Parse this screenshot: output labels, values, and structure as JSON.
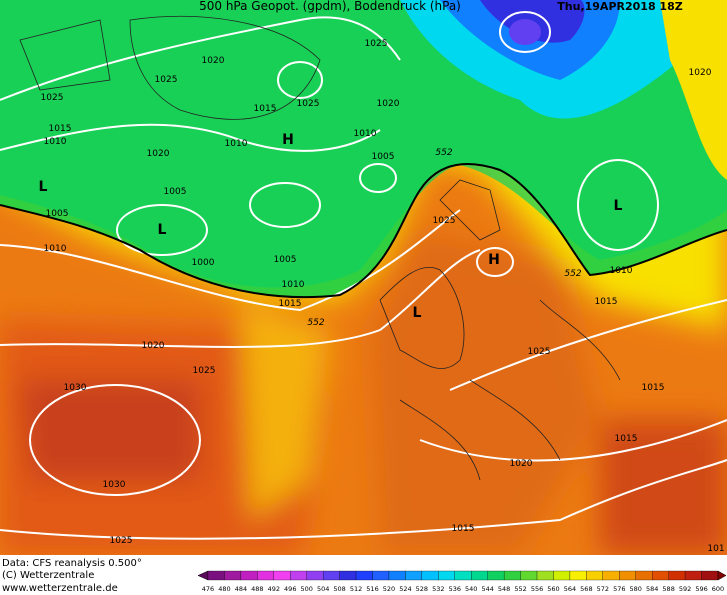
{
  "header": {
    "title": "500 hPa Geopot. (gpdm), Bodendruck (hPa)",
    "date": "Thu,19APR2018 18Z"
  },
  "isobar_labels": [
    "1025",
    "1020",
    "1025",
    "1025",
    "1025",
    "1020",
    "1015",
    "1015",
    "1010",
    "1010",
    "1010",
    "1020",
    "1005",
    "1005",
    "1005",
    "1010",
    "1000",
    "1005",
    "1010",
    "1015",
    "1020",
    "1025",
    "1030",
    "1030",
    "1025",
    "1025",
    "1025",
    "1015",
    "1010",
    "1015",
    "1015",
    "1020",
    "1015",
    "1020",
    "101"
  ],
  "contour_labels": [
    "552",
    "552",
    "552"
  ],
  "pressure_centers": [
    "H",
    "H",
    "L",
    "L",
    "L",
    "L"
  ],
  "footer": {
    "source": "Data: CFS reanalysis 0.500°",
    "copyright": "(C) Wetterzentrale",
    "url": "www.wetterzentrale.de"
  },
  "legend": {
    "ticks": [
      476,
      480,
      484,
      488,
      492,
      496,
      500,
      504,
      508,
      512,
      516,
      520,
      524,
      528,
      532,
      536,
      540,
      544,
      548,
      552,
      556,
      560,
      564,
      568,
      572,
      576,
      580,
      584,
      588,
      592,
      596,
      600
    ],
    "colors": [
      "#5a0a5a",
      "#7a1080",
      "#a01aa0",
      "#c020c0",
      "#e030e0",
      "#f040f0",
      "#c040f0",
      "#9040f0",
      "#6040f0",
      "#3030e0",
      "#2040ff",
      "#2060ff",
      "#1080ff",
      "#10a0ff",
      "#00c0ff",
      "#00d8f0",
      "#00e0c0",
      "#00d890",
      "#10d060",
      "#30d040",
      "#60d830",
      "#a0e020",
      "#d0f000",
      "#f8f000",
      "#f8d000",
      "#f8b000",
      "#f09000",
      "#e87000",
      "#e05000",
      "#d03000",
      "#c02010",
      "#a01010",
      "#800000"
    ]
  }
}
